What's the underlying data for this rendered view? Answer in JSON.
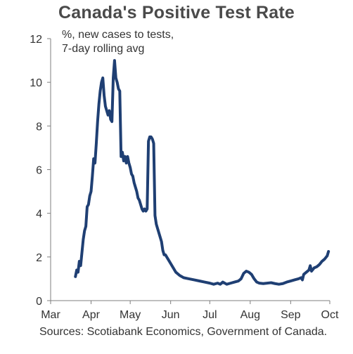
{
  "title": "Canada's Positive Test Rate",
  "note_line1": "%, new cases to tests,",
  "note_line2": "7-day rolling avg",
  "source": "Sources: Scotiabank Economics,  Government of Canada.",
  "colors": {
    "line": "#1f3f73",
    "axis": "#7f7f7f",
    "text": "#333333"
  },
  "chart_data": {
    "type": "line",
    "title": "Canada's Positive Test Rate",
    "ylabel": "%, new cases to tests, 7-day rolling avg",
    "ylim": [
      0,
      12
    ],
    "yticks": [
      0,
      2,
      4,
      6,
      8,
      10,
      12
    ],
    "xlim": [
      "2020-03-01",
      "2020-10-01"
    ],
    "xticks": [
      {
        "label": "Mar",
        "date": "2020-03-01"
      },
      {
        "label": "Apr",
        "date": "2020-04-01"
      },
      {
        "label": "May",
        "date": "2020-05-01"
      },
      {
        "label": "Jun",
        "date": "2020-06-01"
      },
      {
        "label": "Jul",
        "date": "2020-07-01"
      },
      {
        "label": "Aug",
        "date": "2020-08-01"
      },
      {
        "label": "Sep",
        "date": "2020-09-01"
      },
      {
        "label": "Oct",
        "date": "2020-10-01"
      }
    ],
    "grid": false,
    "series": [
      {
        "color": "#1f3f73",
        "points": [
          [
            "2020-03-20",
            1.1
          ],
          [
            "2020-03-21",
            1.4
          ],
          [
            "2020-03-22",
            1.3
          ],
          [
            "2020-03-23",
            1.8
          ],
          [
            "2020-03-24",
            1.6
          ],
          [
            "2020-03-25",
            2.2
          ],
          [
            "2020-03-26",
            2.8
          ],
          [
            "2020-03-27",
            3.2
          ],
          [
            "2020-03-28",
            3.4
          ],
          [
            "2020-03-29",
            4.3
          ],
          [
            "2020-03-30",
            4.4
          ],
          [
            "2020-03-31",
            4.8
          ],
          [
            "2020-04-01",
            5.0
          ],
          [
            "2020-04-02",
            5.7
          ],
          [
            "2020-04-03",
            6.5
          ],
          [
            "2020-04-04",
            6.3
          ],
          [
            "2020-04-05",
            7.2
          ],
          [
            "2020-04-06",
            8.2
          ],
          [
            "2020-04-07",
            9.0
          ],
          [
            "2020-04-08",
            9.6
          ],
          [
            "2020-04-09",
            10.0
          ],
          [
            "2020-04-10",
            10.2
          ],
          [
            "2020-04-11",
            9.4
          ],
          [
            "2020-04-12",
            8.9
          ],
          [
            "2020-04-13",
            8.7
          ],
          [
            "2020-04-14",
            8.5
          ],
          [
            "2020-04-15",
            8.7
          ],
          [
            "2020-04-16",
            8.3
          ],
          [
            "2020-04-17",
            8.2
          ],
          [
            "2020-04-18",
            10.2
          ],
          [
            "2020-04-19",
            11.0
          ],
          [
            "2020-04-20",
            10.2
          ],
          [
            "2020-04-21",
            10.0
          ],
          [
            "2020-04-22",
            9.7
          ],
          [
            "2020-04-23",
            9.6
          ],
          [
            "2020-04-24",
            6.6
          ],
          [
            "2020-04-25",
            6.8
          ],
          [
            "2020-04-26",
            6.4
          ],
          [
            "2020-04-27",
            6.6
          ],
          [
            "2020-04-28",
            6.3
          ],
          [
            "2020-04-29",
            6.6
          ],
          [
            "2020-04-30",
            6.3
          ],
          [
            "2020-05-01",
            6.1
          ],
          [
            "2020-05-02",
            5.8
          ],
          [
            "2020-05-03",
            5.7
          ],
          [
            "2020-05-04",
            5.4
          ],
          [
            "2020-05-05",
            5.2
          ],
          [
            "2020-05-06",
            5.0
          ],
          [
            "2020-05-07",
            4.7
          ],
          [
            "2020-05-08",
            4.6
          ],
          [
            "2020-05-09",
            4.4
          ],
          [
            "2020-05-10",
            4.2
          ],
          [
            "2020-05-11",
            4.1
          ],
          [
            "2020-05-12",
            4.2
          ],
          [
            "2020-05-13",
            4.1
          ],
          [
            "2020-05-14",
            4.2
          ],
          [
            "2020-05-15",
            7.3
          ],
          [
            "2020-05-16",
            7.5
          ],
          [
            "2020-05-17",
            7.5
          ],
          [
            "2020-05-18",
            7.4
          ],
          [
            "2020-05-19",
            7.2
          ],
          [
            "2020-05-20",
            3.9
          ],
          [
            "2020-05-21",
            3.5
          ],
          [
            "2020-05-22",
            3.3
          ],
          [
            "2020-05-23",
            3.1
          ],
          [
            "2020-05-24",
            2.9
          ],
          [
            "2020-05-25",
            2.7
          ],
          [
            "2020-05-26",
            2.3
          ],
          [
            "2020-05-27",
            2.1
          ],
          [
            "2020-05-28",
            2.1
          ],
          [
            "2020-05-30",
            1.9
          ],
          [
            "2020-06-01",
            1.7
          ],
          [
            "2020-06-03",
            1.5
          ],
          [
            "2020-06-05",
            1.3
          ],
          [
            "2020-06-08",
            1.15
          ],
          [
            "2020-06-11",
            1.05
          ],
          [
            "2020-06-15",
            1.0
          ],
          [
            "2020-06-19",
            0.95
          ],
          [
            "2020-06-23",
            0.9
          ],
          [
            "2020-06-27",
            0.85
          ],
          [
            "2020-07-01",
            0.8
          ],
          [
            "2020-07-04",
            0.75
          ],
          [
            "2020-07-07",
            0.8
          ],
          [
            "2020-07-09",
            0.75
          ],
          [
            "2020-07-11",
            0.85
          ],
          [
            "2020-07-14",
            0.75
          ],
          [
            "2020-07-17",
            0.8
          ],
          [
            "2020-07-20",
            0.85
          ],
          [
            "2020-07-23",
            0.9
          ],
          [
            "2020-07-25",
            1.0
          ],
          [
            "2020-07-27",
            1.25
          ],
          [
            "2020-07-29",
            1.35
          ],
          [
            "2020-07-31",
            1.3
          ],
          [
            "2020-08-02",
            1.2
          ],
          [
            "2020-08-04",
            1.0
          ],
          [
            "2020-08-06",
            0.85
          ],
          [
            "2020-08-08",
            0.8
          ],
          [
            "2020-08-11",
            0.78
          ],
          [
            "2020-08-14",
            0.8
          ],
          [
            "2020-08-17",
            0.82
          ],
          [
            "2020-08-20",
            0.78
          ],
          [
            "2020-08-23",
            0.75
          ],
          [
            "2020-08-26",
            0.78
          ],
          [
            "2020-08-29",
            0.85
          ],
          [
            "2020-09-01",
            0.9
          ],
          [
            "2020-09-04",
            0.95
          ],
          [
            "2020-09-07",
            1.0
          ],
          [
            "2020-09-09",
            1.05
          ],
          [
            "2020-09-10",
            0.95
          ],
          [
            "2020-09-11",
            1.2
          ],
          [
            "2020-09-13",
            1.3
          ],
          [
            "2020-09-15",
            1.4
          ],
          [
            "2020-09-16",
            1.6
          ],
          [
            "2020-09-17",
            1.35
          ],
          [
            "2020-09-19",
            1.5
          ],
          [
            "2020-09-21",
            1.55
          ],
          [
            "2020-09-23",
            1.65
          ],
          [
            "2020-09-25",
            1.8
          ],
          [
            "2020-09-27",
            1.9
          ],
          [
            "2020-09-29",
            2.05
          ],
          [
            "2020-09-30",
            2.25
          ]
        ]
      }
    ]
  }
}
